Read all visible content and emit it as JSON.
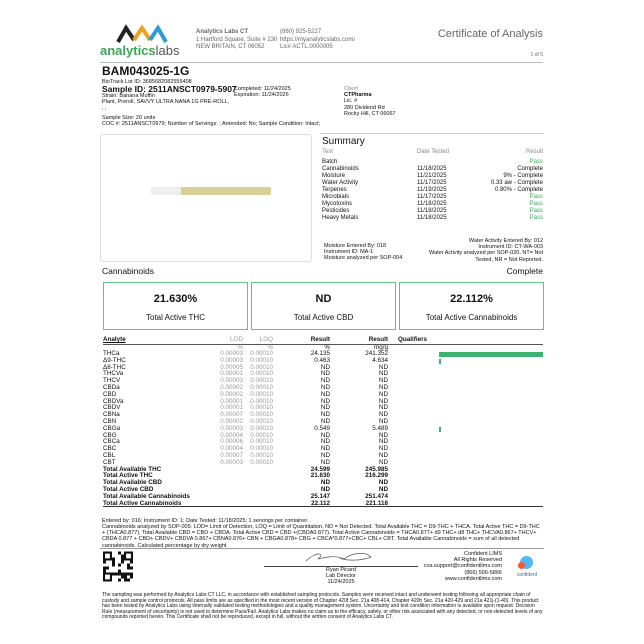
{
  "header": {
    "logo_text_a": "analytics",
    "logo_text_b": "labs",
    "lab_name": "Analytics Labs CT",
    "address1": "1 Hartford Square, Suite # 230",
    "address2": "NEW BRITAIN, CT 06052",
    "phone": "(860) 925-5227",
    "website": "https://myanalyticslabs.com/",
    "license": "Lic# ACTL.0000005",
    "doc_title": "Certificate of Analysis",
    "page": "1 of 5"
  },
  "sample": {
    "title": "BAM043025-1G",
    "biotrack": "BioTrack Lot ID: 3685682082555408",
    "sample_id": "Sample ID: 2511ANSCT0979-5907",
    "completed": "Completed: 11/24/2025",
    "expiration": "Expiration: 11/24/2026",
    "strain": "Strain: Banana Muffin",
    "type": "Plant, Preroll, SAVVY ULTRA NANA 1G PRE-ROLL,",
    "extra": ", ,",
    "size": "Sample Size: 20 units",
    "coc": "COC #: 2511ANSCT0979; Number of Servings: ; Amended: No; Sample Condition: Intact;"
  },
  "client": {
    "label": "Client",
    "name": "CTPharma",
    "lic": "Lic. #",
    "addr1": "280 Dividend Rd",
    "addr2": "Rocky Hill, CT 06067"
  },
  "summary": {
    "title": "Summary",
    "headers": [
      "Test",
      "Date Tested",
      "Result"
    ],
    "rows": [
      [
        "Batch",
        "",
        "Pass"
      ],
      [
        "Cannabinoids",
        "11/18/2025",
        "Complete"
      ],
      [
        "Moisture",
        "11/21/2025",
        "9% - Complete"
      ],
      [
        "Water Activity",
        "11/17/2025",
        "0.33 aw - Complete"
      ],
      [
        "Terpenes",
        "11/19/2025",
        "0.80% - Complete"
      ],
      [
        "Microbials",
        "11/17/2025",
        "Pass"
      ],
      [
        "Mycotoxins",
        "11/18/2025",
        "Pass"
      ],
      [
        "Pesticides",
        "11/18/2025",
        "Pass"
      ],
      [
        "Heavy Metals",
        "11/18/2025",
        "Pass"
      ]
    ],
    "moisture_note": [
      "Moisture Entered By: 018",
      "Instrument ID: MA-1",
      "Moisture analyzed per SOP-004"
    ],
    "wa_note": [
      "Water Activity Entered By: 012",
      "Instrument ID: CT-WA-003",
      "Water Activity analyzed per SOP-020. NT= Not",
      "Tested, NR = Not Reported."
    ]
  },
  "cannabinoids": {
    "title": "Cannabinoids",
    "status": "Complete",
    "boxes": [
      {
        "value": "21.630%",
        "label": "Total Active THC"
      },
      {
        "value": "ND",
        "label": "Total Active CBD"
      },
      {
        "value": "22.112%",
        "label": "Total Active Cannabinoids"
      }
    ],
    "headers": [
      "Analyte",
      "LOD",
      "LOQ",
      "Result",
      "Result",
      "Qualifiers"
    ],
    "units": [
      "%",
      "%",
      "%",
      "mg/g"
    ],
    "rows": [
      [
        "THCa",
        "0.00003",
        "0.00010",
        "24.135",
        "241.352"
      ],
      [
        "Δ9-THC",
        "0.00003",
        "0.00010",
        "0.463",
        "4.634"
      ],
      [
        "Δ8-THC",
        "0.00005",
        "0.00010",
        "ND",
        "ND"
      ],
      [
        "THCVa",
        "0.00001",
        "0.00010",
        "ND",
        "ND"
      ],
      [
        "THCV",
        "0.00003",
        "0.00010",
        "ND",
        "ND"
      ],
      [
        "CBDa",
        "0.00002",
        "0.00010",
        "ND",
        "ND"
      ],
      [
        "CBD",
        "0.00002",
        "0.00010",
        "ND",
        "ND"
      ],
      [
        "CBDVa",
        "0.00001",
        "0.00010",
        "ND",
        "ND"
      ],
      [
        "CBDV",
        "0.00001",
        "0.00010",
        "ND",
        "ND"
      ],
      [
        "CBNa",
        "0.00007",
        "0.00010",
        "ND",
        "ND"
      ],
      [
        "CBN",
        "0.00002",
        "0.00010",
        "ND",
        "ND"
      ],
      [
        "CBGa",
        "0.00003",
        "0.00010",
        "0.549",
        "5.489"
      ],
      [
        "CBG",
        "0.00004",
        "0.00010",
        "ND",
        "ND"
      ],
      [
        "CBCa",
        "0.00006",
        "0.00010",
        "ND",
        "ND"
      ],
      [
        "CBC",
        "0.00004",
        "0.00010",
        "ND",
        "ND"
      ],
      [
        "CBL",
        "0.00007",
        "0.00010",
        "ND",
        "ND"
      ],
      [
        "CBT",
        "0.00003",
        "0.00010",
        "ND",
        "ND"
      ]
    ],
    "totals": [
      [
        "Total Available THC",
        "24.599",
        "245.985"
      ],
      [
        "Total Active THC",
        "21.630",
        "216.299"
      ],
      [
        "Total Available CBD",
        "ND",
        "ND"
      ],
      [
        "Total Active CBD",
        "ND",
        "ND"
      ],
      [
        "Total Available Cannabinoids",
        "25.147",
        "251.474"
      ],
      [
        "Total Active Cannabinoids",
        "22.112",
        "221.118"
      ]
    ],
    "bar_color": "#3cb371"
  },
  "notes": {
    "entered": "Entered by: 016; Instrument ID: 1; Date Tested: 11/18/2025; 1 servings per container.",
    "method": "Cannabinoids analyzed by SOP-009. LOD= Limit of Detection, LOQ = Limit of Quantitation, ND = Not Detected. Total Available THC = D9-THC + THCA. Total Active THC = D9-THC + (THCA0.877). Total Available CBD = CBD + CBDA. Total Active CBD = CBD +(CBDA0.877). Total Active Cannabinoids = THCA0.877+ d9 THC+ d8 THC+ THCVA0.867+ THCV+ CBDA 0.877 + CBD+ CBDV+ CBDVA 0.867+ CBNA0.876+ CBN + CBGA0.878+ CBG + CBCA*0.877+CBC+ CBL+ CBT. Total Available Cannabinoids = sum of all detected cannabinoids. Calculated percentage by dry weight"
  },
  "signature": {
    "name": "Ryan Picard",
    "role": "Lab Director",
    "date": "11/24/2025"
  },
  "lims": {
    "name": "Confident LIMS",
    "rights": "All Rights Reserved",
    "email": "coa.support@confidentlims.com",
    "phone": "(866) 506-5866",
    "web": "www.confidentlims.com",
    "logo": "confident"
  },
  "disclaimer": "The sampling was performed by Analytics Labs CT LLC, in accordance with established sampling protocols. Samples were received intact and underwent testing following all appropriate chain of custody and sample control protocols. All pass limits are as specified in the most recent version of Chapter 420f Sec. 21a 408-414, Chapter 420h Sec. 21a 420-429 and 21a 421j-(1-40). This product has been tested by Analytics Labs using internally validated testing methodologies and a quality management system. Uncertainty and test condition information is available upon request. Decision Rule (measurement of uncertainty) is not used to determine Pass/Fail. Analytics Labs makes no claim as to the efficacy, safety, or other risk associated with any detected, or non-detected levels of any compounds reported herein. This Certificate shall not be reproduced, except in full, without the written consent of Analytics Labs CT."
}
